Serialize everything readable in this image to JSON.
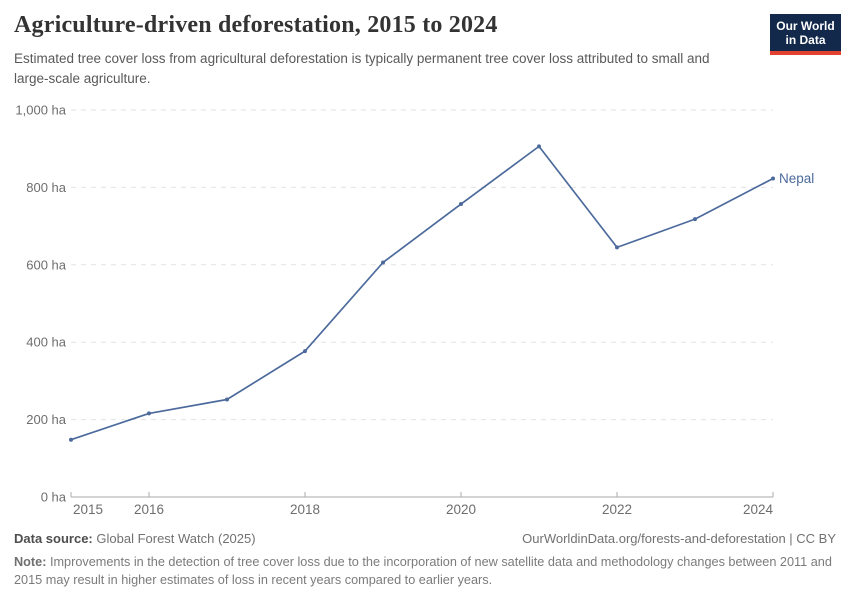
{
  "header": {
    "title": "Agriculture-driven deforestation, 2015 to 2024",
    "subtitle": "Estimated tree cover loss from agricultural deforestation is typically permanent tree cover loss attributed to small and large-scale agriculture.",
    "logo": {
      "line1": "Our World",
      "line2": "in Data"
    }
  },
  "chart_data": {
    "type": "line",
    "title": "Agriculture-driven deforestation, 2015 to 2024",
    "unit": "ha",
    "x": [
      2015,
      2016,
      2017,
      2018,
      2019,
      2020,
      2021,
      2022,
      2023,
      2024
    ],
    "series": [
      {
        "name": "Nepal",
        "color": "#4c6a9c",
        "values": [
          148,
          216,
          252,
          377,
          606,
          757,
          906,
          645,
          718,
          823
        ]
      }
    ],
    "xlim": [
      2015,
      2024
    ],
    "ylim": [
      0,
      1000
    ],
    "grid": "horizontal-dashed",
    "legend_position": "end-of-line",
    "x_ticks": [
      {
        "value": 2015,
        "label": "2015"
      },
      {
        "value": 2016,
        "label": "2016"
      },
      {
        "value": 2018,
        "label": "2018"
      },
      {
        "value": 2020,
        "label": "2020"
      },
      {
        "value": 2022,
        "label": "2022"
      },
      {
        "value": 2024,
        "label": "2024"
      }
    ],
    "y_ticks": [
      {
        "value": 0,
        "label": "0 ha"
      },
      {
        "value": 200,
        "label": "200 ha"
      },
      {
        "value": 400,
        "label": "400 ha"
      },
      {
        "value": 600,
        "label": "600 ha"
      },
      {
        "value": 800,
        "label": "800 ha"
      },
      {
        "value": 1000,
        "label": "1,000 ha"
      }
    ]
  },
  "footer": {
    "datasource_label": "Data source:",
    "datasource_value": "Global Forest Watch (2025)",
    "link": "OurWorldinData.org/forests-and-deforestation | CC BY",
    "note_label": "Note:",
    "note_text": "Improvements in the detection of tree cover loss due to the incorporation of new satellite data and methodology changes between 2011 and 2015 may result in higher estimates of loss in recent years compared to earlier years."
  },
  "colors": {
    "accent_line": "#4c6a9c",
    "logo_background": "#12294b",
    "logo_underline": "#e0422f",
    "grid_line": "#e2e2e2",
    "axis_line": "#ababab",
    "tick_text": "#6e6e6e"
  }
}
